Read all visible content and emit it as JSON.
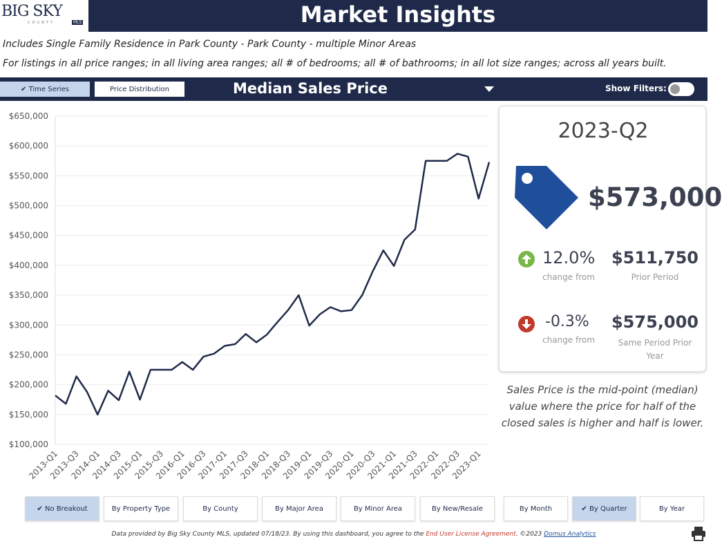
{
  "header": {
    "logo": "BIG SKY",
    "logo_sub": "COUNTY",
    "logo_badge": "MLS",
    "title": "Market Insights"
  },
  "subtitle": [
    "Includes Single Family Residence in Park County - Park County - multiple Minor Areas",
    "For listings in all price ranges; in all living area ranges; all # of bedrooms; all # of bathrooms; in all lot size ranges; across all years built."
  ],
  "toolbar": {
    "tabs": [
      "Time Series",
      "Price Distribution"
    ],
    "metric": "Median Sales Price",
    "filters_label": "Show Filters:"
  },
  "chart_data": {
    "type": "line",
    "color": "#1f2a4a",
    "grid": true,
    "categories": [
      "2013-Q1",
      null,
      "2013-Q3",
      null,
      "2014-Q1",
      null,
      "2014-Q3",
      null,
      "2015-Q1",
      null,
      "2015-Q3",
      null,
      "2016-Q1",
      null,
      "2016-Q3",
      null,
      "2017-Q1",
      null,
      "2017-Q3",
      null,
      "2018-Q1",
      null,
      "2018-Q3",
      null,
      "2019-Q1",
      null,
      "2019-Q3",
      null,
      "2020-Q1",
      null,
      "2020-Q3",
      null,
      "2021-Q1",
      null,
      "2021-Q3",
      null,
      "2022-Q1",
      null,
      "2022-Q3",
      null,
      "2023-Q1",
      null
    ],
    "values": [
      182000,
      168000,
      214000,
      188000,
      150000,
      190000,
      174000,
      222000,
      175000,
      225000,
      225000,
      225000,
      238000,
      225000,
      247000,
      252000,
      265000,
      268000,
      285000,
      271000,
      284000,
      305000,
      325000,
      350000,
      299000,
      318000,
      330000,
      323000,
      325000,
      350000,
      390000,
      425000,
      399000,
      443000,
      460000,
      575000,
      575000,
      575000,
      587000,
      582000,
      511750,
      573000
    ],
    "ylim": [
      100000,
      650000
    ],
    "yticks": [
      {
        "value": 100000,
        "label": "$100,000"
      },
      {
        "value": 150000,
        "label": "$150,000"
      },
      {
        "value": 200000,
        "label": "$200,000"
      },
      {
        "value": 250000,
        "label": "$250,000"
      },
      {
        "value": 300000,
        "label": "$300,000"
      },
      {
        "value": 350000,
        "label": "$350,000"
      },
      {
        "value": 400000,
        "label": "$400,000"
      },
      {
        "value": 450000,
        "label": "$450,000"
      },
      {
        "value": 500000,
        "label": "$500,000"
      },
      {
        "value": 550000,
        "label": "$550,000"
      },
      {
        "value": 600000,
        "label": "$600,000"
      },
      {
        "value": 650000,
        "label": "$650,000"
      }
    ]
  },
  "summary": {
    "period": "2023-Q2",
    "value": "$573,000",
    "comparisons": [
      {
        "change": "12.0%",
        "change_label": "change from",
        "amount": "$511,750",
        "amount_label": "Prior Period"
      },
      {
        "change": "-0.3%",
        "change_label": "change from",
        "amount": "$575,000",
        "amount_label": "Same Period Prior Year"
      }
    ],
    "note": "Sales Price is the mid-point (median) value where the price for half of the closed sales is higher and half is lower."
  },
  "breakouts": [
    "No Breakout",
    "By Property Type",
    "By County",
    "By Major Area",
    "By Minor Area",
    "By New/Resale",
    "By Month",
    "By Quarter",
    "By Year"
  ],
  "footer": {
    "text": "Data provided by Big Sky County MLS, updated 07/18/23.  By using this dashboard, you agree to the",
    "license": "End User License Agreement",
    "copyright": ". ©2023",
    "company": "Domus Analytics"
  }
}
